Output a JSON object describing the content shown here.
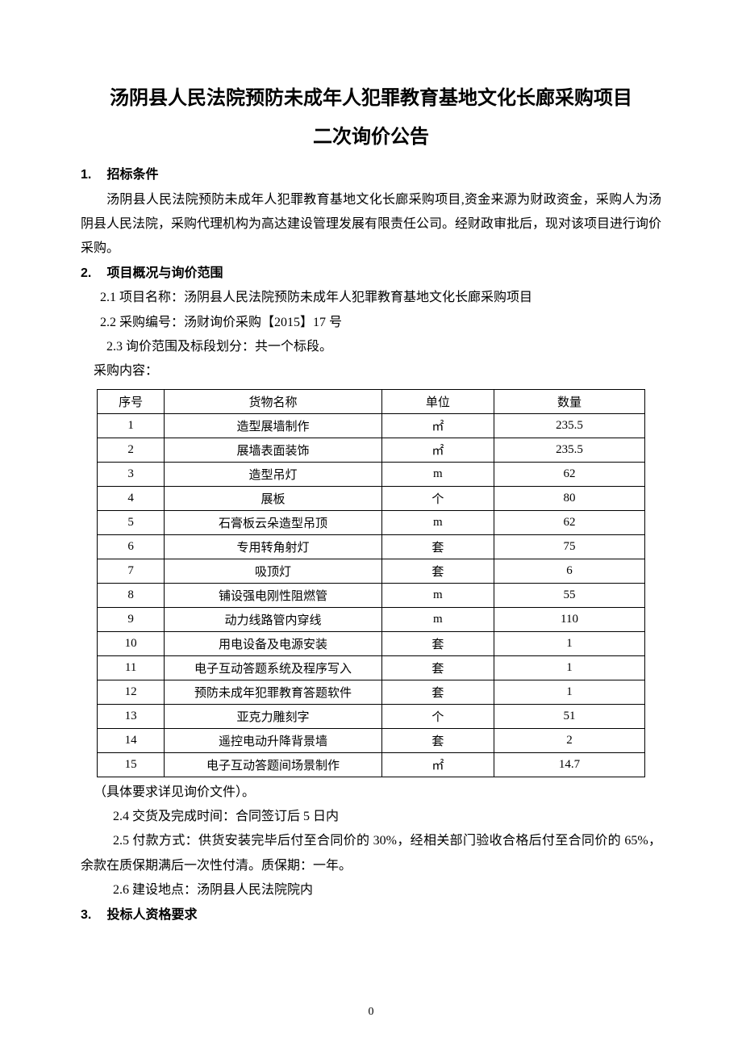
{
  "title_line1": "汤阴县人民法院预防未成年人犯罪教育基地文化长廊采购项目",
  "title_line2": "二次询价公告",
  "section1": {
    "num": "1.",
    "heading": "招标条件",
    "para": "汤阴县人民法院预防未成年人犯罪教育基地文化长廊采购项目,资金来源为财政资金，采购人为汤阴县人民法院，采购代理机构为高达建设管理发展有限责任公司。经财政审批后，现对该项目进行询价采购。"
  },
  "section2": {
    "num": "2.",
    "heading": "项目概况与询价范围",
    "p21": "2.1 项目名称：汤阴县人民法院预防未成年人犯罪教育基地文化长廊采购项目",
    "p22": "2.2 采购编号：汤财询价采购【2015】17 号",
    "p23": "2.3 询价范围及标段划分：共一个标段。",
    "content_label": "采购内容：",
    "table": {
      "headers": [
        "序号",
        "货物名称",
        "单位",
        "数量"
      ],
      "rows": [
        [
          "1",
          "造型展墙制作",
          "㎡",
          "235.5"
        ],
        [
          "2",
          "展墙表面装饰",
          "㎡",
          "235.5"
        ],
        [
          "3",
          "造型吊灯",
          "m",
          "62"
        ],
        [
          "4",
          "展板",
          "个",
          "80"
        ],
        [
          "5",
          "石膏板云朵造型吊顶",
          "m",
          "62"
        ],
        [
          "6",
          "专用转角射灯",
          "套",
          "75"
        ],
        [
          "7",
          "吸顶灯",
          "套",
          "6"
        ],
        [
          "8",
          "铺设强电刚性阻燃管",
          "m",
          "55"
        ],
        [
          "9",
          "动力线路管内穿线",
          "m",
          "110"
        ],
        [
          "10",
          "用电设备及电源安装",
          "套",
          "1"
        ],
        [
          "11",
          "电子互动答题系统及程序写入",
          "套",
          "1"
        ],
        [
          "12",
          "预防未成年犯罪教育答题软件",
          "套",
          "1"
        ],
        [
          "13",
          "亚克力雕刻字",
          "个",
          "51"
        ],
        [
          "14",
          "遥控电动升降背景墙",
          "套",
          "2"
        ],
        [
          "15",
          "电子互动答题间场景制作",
          "㎡",
          "14.7"
        ]
      ]
    },
    "note": "（具体要求详见询价文件）。",
    "p24": "2.4 交货及完成时间：合同签订后 5 日内",
    "p25": "2.5 付款方式：供货安装完毕后付至合同价的 30%，经相关部门验收合格后付至合同价的 65%，余款在质保期满后一次性付清。质保期：一年。",
    "p26": "2.6 建设地点：汤阴县人民法院院内"
  },
  "section3": {
    "num": "3.",
    "heading": "投标人资格要求"
  },
  "page_number": "0"
}
